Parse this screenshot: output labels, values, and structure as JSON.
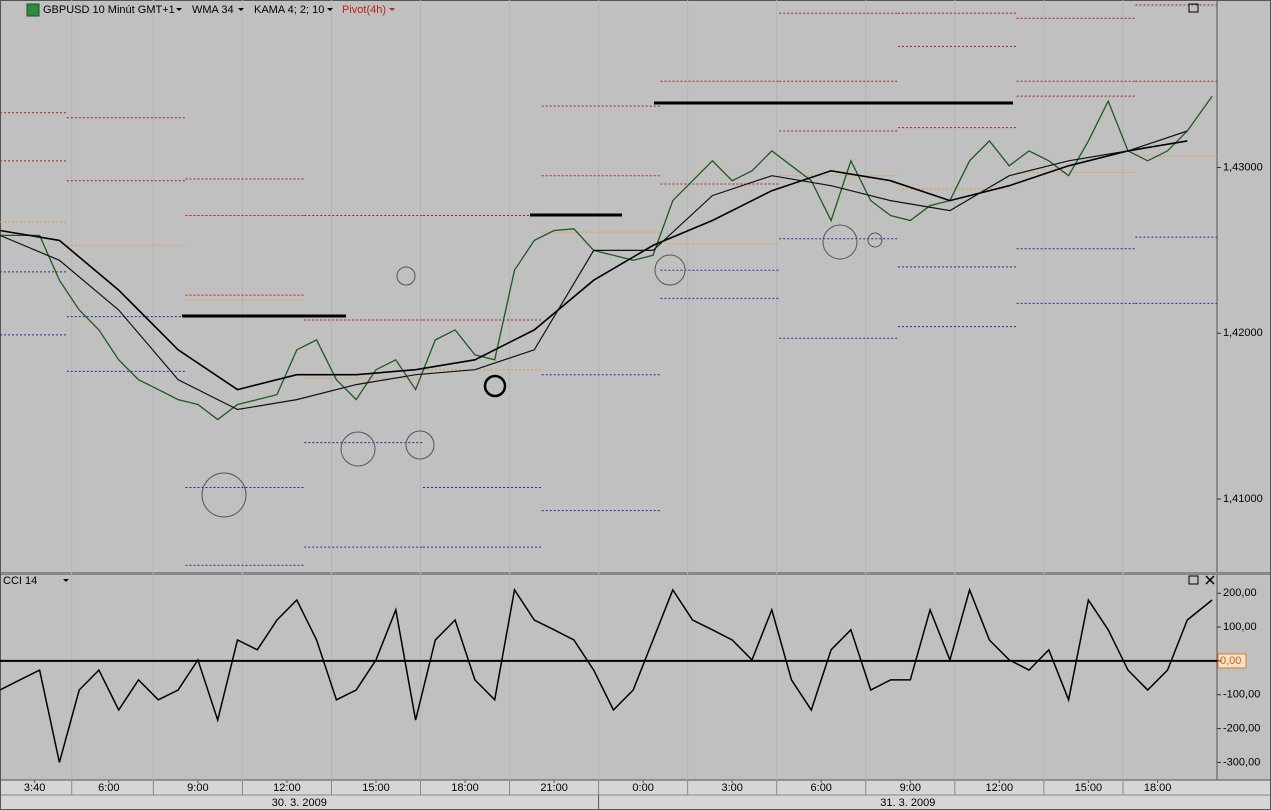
{
  "chart_data": [
    {
      "type": "line",
      "title": "GBPUSD 10 Minút GMT+1",
      "xlim": [
        0,
        246
      ],
      "xticks": [
        {
          "value": 7,
          "label": "3:40"
        },
        {
          "value": 22,
          "label": "6:00"
        },
        {
          "value": 40,
          "label": "9:00"
        },
        {
          "value": 58,
          "label": "12:00"
        },
        {
          "value": 76,
          "label": "15:00"
        },
        {
          "value": 94,
          "label": "18:00"
        },
        {
          "value": 112,
          "label": "21:00"
        },
        {
          "value": 130,
          "label": "0:00"
        },
        {
          "value": 148,
          "label": "3:00"
        },
        {
          "value": 166,
          "label": "6:00"
        },
        {
          "value": 184,
          "label": "9:00"
        },
        {
          "value": 202,
          "label": "12:00"
        },
        {
          "value": 220,
          "label": "15:00"
        },
        {
          "value": 234,
          "label": "18:00"
        }
      ],
      "dates": [
        "30. 3. 2009",
        "31. 3. 2009"
      ],
      "ylim": [
        1.4056,
        1.4401
      ],
      "yticks": [
        {
          "value": 1.43,
          "label": "1,43000"
        },
        {
          "value": 1.42,
          "label": "1,42000"
        },
        {
          "value": 1.41,
          "label": "1,41000"
        }
      ],
      "color": "#1e5a1e",
      "x": [
        0,
        4,
        8,
        12,
        16,
        20,
        24,
        28,
        32,
        36,
        40,
        44,
        48,
        52,
        56,
        60,
        64,
        68,
        72,
        76,
        80,
        84,
        88,
        92,
        96,
        100,
        104,
        108,
        112,
        116,
        120,
        124,
        128,
        132,
        136,
        140,
        144,
        148,
        152,
        156,
        160,
        164,
        168,
        172,
        176,
        180,
        184,
        188,
        192,
        196,
        200,
        204,
        208,
        212,
        216,
        220,
        224,
        228,
        232,
        236,
        240,
        245
      ],
      "values": [
        1.4259,
        1.4259,
        1.4259,
        1.4232,
        1.4214,
        1.4202,
        1.4184,
        1.4172,
        1.4166,
        1.416,
        1.4157,
        1.4148,
        1.4157,
        1.416,
        1.4163,
        1.419,
        1.4196,
        1.4172,
        1.416,
        1.4178,
        1.4184,
        1.4166,
        1.4196,
        1.4202,
        1.4187,
        1.4184,
        1.4238,
        1.4256,
        1.4262,
        1.4263,
        1.425,
        1.4247,
        1.4244,
        1.4247,
        1.428,
        1.4292,
        1.4304,
        1.4292,
        1.4298,
        1.431,
        1.4301,
        1.4292,
        1.4268,
        1.4304,
        1.428,
        1.4271,
        1.4268,
        1.4277,
        1.428,
        1.4304,
        1.4316,
        1.4301,
        1.431,
        1.4304,
        1.4295,
        1.4316,
        1.434,
        1.431,
        1.4304,
        1.431,
        1.4322,
        1.4343
      ],
      "series": [
        {
          "name": "WMA 34",
          "color": "#000000",
          "x": [
            0,
            12,
            24,
            36,
            48,
            60,
            72,
            84,
            96,
            108,
            120,
            132,
            144,
            156,
            168,
            180,
            192,
            204,
            216,
            228,
            240
          ],
          "values": [
            1.4262,
            1.4256,
            1.4226,
            1.419,
            1.4166,
            1.4175,
            1.4175,
            1.4178,
            1.4184,
            1.4202,
            1.4232,
            1.4253,
            1.4268,
            1.4286,
            1.4298,
            1.4292,
            1.428,
            1.4289,
            1.4301,
            1.431,
            1.4316
          ]
        },
        {
          "name": "KAMA 4; 2; 10",
          "color": "#111111",
          "x": [
            0,
            12,
            24,
            36,
            48,
            60,
            72,
            84,
            96,
            108,
            120,
            132,
            144,
            156,
            168,
            180,
            192,
            204,
            216,
            228,
            240
          ],
          "values": [
            1.4259,
            1.4244,
            1.4214,
            1.4172,
            1.4154,
            1.416,
            1.4169,
            1.4175,
            1.4178,
            1.419,
            1.425,
            1.425,
            1.4283,
            1.4295,
            1.4289,
            1.428,
            1.4274,
            1.4295,
            1.4304,
            1.431,
            1.4322
          ]
        }
      ],
      "pivot": {
        "name": "Pivot(4h)",
        "color": "#b02020",
        "pivot_color": "#e89a3c",
        "support_color": "#2a2a9a",
        "bounds": [
          0,
          13.5,
          37.5,
          61.5,
          85.5,
          109.5,
          133.5,
          157.5,
          181.5,
          205.5,
          229.5,
          246
        ],
        "resistance": [
          [
            1.4333,
            1.4304
          ],
          [
            1.433,
            1.4292
          ],
          [
            1.4293,
            1.4271,
            1.4223
          ],
          [
            1.4271,
            1.4208
          ],
          [
            1.4271,
            1.4208
          ],
          [
            1.4337,
            1.4295
          ],
          [
            1.4352,
            1.429
          ],
          [
            1.4393,
            1.4352,
            1.4322
          ],
          [
            1.4393,
            1.4373,
            1.4324
          ],
          [
            1.439,
            1.4352,
            1.4343
          ],
          [
            1.4398,
            1.4352
          ]
        ],
        "levels": [
          1.4267,
          1.4253,
          1.422,
          1.4173,
          1.4178,
          1.4261,
          1.4254,
          1.4295,
          1.4287,
          1.4297,
          1.4307
        ],
        "support": [
          [
            1.4237,
            1.4199
          ],
          [
            1.421,
            1.4177
          ],
          [
            1.4107,
            1.406
          ],
          [
            1.4134,
            1.4071
          ],
          [
            1.4107,
            1.4071
          ],
          [
            1.4175,
            1.4093
          ],
          [
            1.4238,
            1.4221
          ],
          [
            1.4257,
            1.4197
          ],
          [
            1.424,
            1.4204
          ],
          [
            1.4251,
            1.4218
          ],
          [
            1.4258,
            1.4218
          ]
        ]
      }
    },
    {
      "type": "line",
      "title": "CCI 14",
      "color": "#000000",
      "ylim": [
        -352,
        254
      ],
      "reference_line": 0,
      "yticks": [
        {
          "value": 200,
          "label": "200,00"
        },
        {
          "value": 100,
          "label": "100,00"
        },
        {
          "value": 0,
          "label": "0,00"
        },
        {
          "value": -100,
          "label": "-100,00"
        },
        {
          "value": -200,
          "label": "-200,00"
        },
        {
          "value": -300,
          "label": "-300,00"
        }
      ],
      "x": [
        0,
        4,
        8,
        12,
        16,
        20,
        24,
        28,
        32,
        36,
        40,
        44,
        48,
        52,
        56,
        60,
        64,
        68,
        72,
        76,
        80,
        84,
        88,
        92,
        96,
        100,
        104,
        108,
        112,
        116,
        120,
        124,
        128,
        132,
        136,
        140,
        144,
        148,
        152,
        156,
        160,
        164,
        168,
        172,
        176,
        180,
        184,
        188,
        192,
        196,
        200,
        204,
        208,
        212,
        216,
        220,
        224,
        228,
        232,
        236,
        240,
        245
      ],
      "values": [
        -86,
        -56,
        -27,
        -300,
        -86,
        -27,
        -145,
        -56,
        -115,
        -86,
        3,
        -175,
        62,
        33,
        121,
        180,
        62,
        -115,
        -86,
        3,
        151,
        -175,
        62,
        121,
        -56,
        -115,
        210,
        121,
        92,
        62,
        -27,
        -145,
        -86,
        62,
        210,
        121,
        92,
        62,
        3,
        151,
        -56,
        -145,
        33,
        92,
        -86,
        -56,
        -56,
        151,
        3,
        210,
        62,
        3,
        -27,
        33,
        -115,
        180,
        92,
        -27,
        -86,
        -27,
        121,
        180
      ]
    }
  ]
}
